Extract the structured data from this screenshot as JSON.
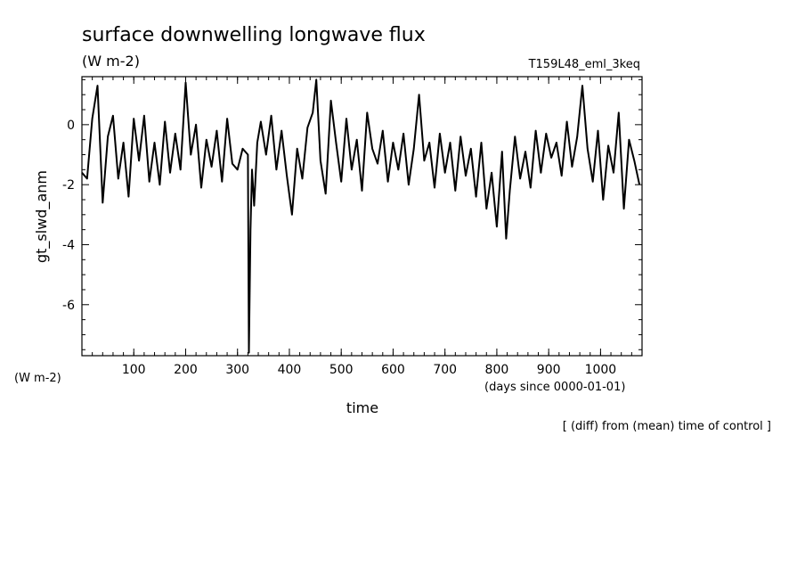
{
  "chart_data": {
    "type": "line",
    "title": "surface downwelling longwave flux",
    "units": "(W m-2)",
    "run_name": "T159L48_eml_3keq",
    "ylabel": "gt_slwd_anm",
    "xlabel": "time",
    "x_unit_note": "(days since 0000-01-01)",
    "y_unit_corner": "(W m-2)",
    "footnote": "[ (diff) from (mean) time of control ]",
    "xlim": [
      0,
      1080
    ],
    "ylim": [
      -7.7,
      1.6
    ],
    "x_ticks": [
      100,
      200,
      300,
      400,
      500,
      600,
      700,
      800,
      900,
      1000
    ],
    "y_ticks": [
      0,
      -2,
      -4,
      -6
    ],
    "grid": false,
    "series": [
      {
        "x": [
          0,
          10,
          20,
          30,
          40,
          50,
          60,
          70,
          80,
          90,
          100,
          110,
          120,
          130,
          140,
          150,
          160,
          170,
          180,
          190,
          200,
          210,
          220,
          230,
          240,
          250,
          260,
          270,
          280,
          290,
          300,
          310,
          320,
          322,
          325,
          328,
          332,
          338,
          345,
          355,
          365,
          375,
          385,
          395,
          405,
          415,
          425,
          435,
          445,
          452,
          460,
          470,
          480,
          490,
          500,
          510,
          520,
          530,
          540,
          550,
          560,
          570,
          580,
          590,
          600,
          610,
          620,
          630,
          640,
          650,
          660,
          670,
          680,
          690,
          700,
          710,
          720,
          730,
          740,
          750,
          760,
          770,
          780,
          790,
          800,
          810,
          818,
          825,
          835,
          845,
          855,
          865,
          875,
          885,
          895,
          905,
          915,
          925,
          935,
          945,
          955,
          965,
          975,
          985,
          995,
          1005,
          1015,
          1025,
          1035,
          1045,
          1055,
          1065,
          1075
        ],
        "y": [
          -1.6,
          -1.8,
          0.2,
          1.3,
          -2.6,
          -0.4,
          0.3,
          -1.8,
          -0.6,
          -2.4,
          0.2,
          -1.2,
          0.3,
          -1.9,
          -0.6,
          -2.0,
          0.1,
          -1.6,
          -0.3,
          -1.5,
          1.4,
          -1.0,
          0.0,
          -2.1,
          -0.5,
          -1.4,
          -0.2,
          -1.9,
          0.2,
          -1.3,
          -1.5,
          -0.8,
          -1.0,
          -7.6,
          -3.5,
          -1.5,
          -2.7,
          -0.6,
          0.1,
          -1.0,
          0.3,
          -1.5,
          -0.2,
          -1.7,
          -3.0,
          -0.8,
          -1.8,
          -0.1,
          0.4,
          1.5,
          -1.2,
          -2.3,
          0.8,
          -0.6,
          -1.9,
          0.2,
          -1.5,
          -0.5,
          -2.2,
          0.4,
          -0.8,
          -1.3,
          -0.2,
          -1.9,
          -0.6,
          -1.5,
          -0.3,
          -2.0,
          -0.8,
          1.0,
          -1.2,
          -0.6,
          -2.1,
          -0.3,
          -1.6,
          -0.6,
          -2.2,
          -0.4,
          -1.7,
          -0.8,
          -2.4,
          -0.6,
          -2.8,
          -1.6,
          -3.4,
          -0.9,
          -3.8,
          -2.2,
          -0.4,
          -1.8,
          -0.9,
          -2.1,
          -0.2,
          -1.6,
          -0.3,
          -1.1,
          -0.6,
          -1.7,
          0.1,
          -1.4,
          -0.4,
          1.3,
          -0.8,
          -1.9,
          -0.2,
          -2.5,
          -0.7,
          -1.6,
          0.4,
          -2.8,
          -0.5,
          -1.2,
          -2.0
        ]
      }
    ]
  }
}
